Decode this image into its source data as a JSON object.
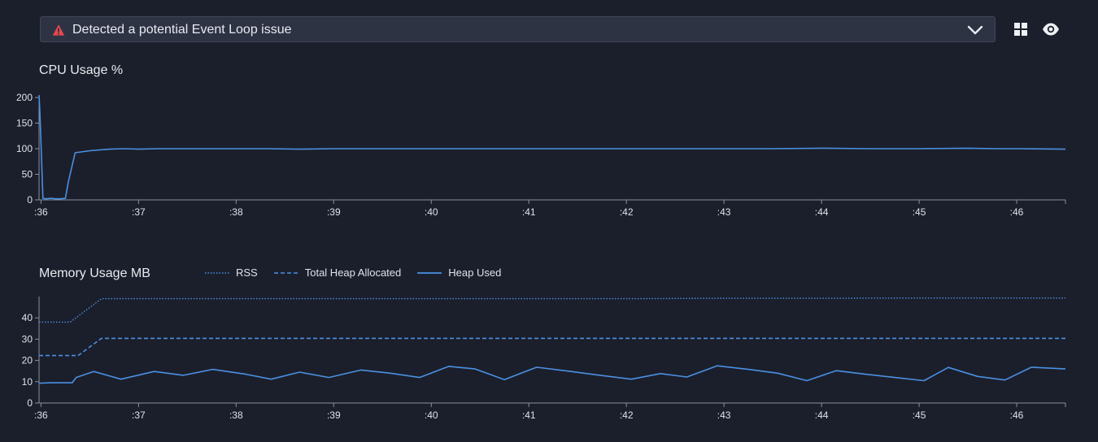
{
  "alert": {
    "text": "Detected a potential Event Loop issue",
    "icon": "warning-triangle-icon",
    "color": "#e5484d"
  },
  "toolbar": {
    "grid_icon": "grid-icon",
    "eye_icon": "eye-icon"
  },
  "cpu_chart": {
    "title": "CPU Usage %"
  },
  "memory_chart": {
    "title": "Memory Usage MB",
    "legend": [
      "RSS",
      "Total Heap Allocated",
      "Heap Used"
    ]
  },
  "colors": {
    "background": "#1b1f2b",
    "line": "#4a90e2",
    "axis": "#8a8f9c"
  },
  "chart_data": [
    {
      "type": "line",
      "title": "CPU Usage %",
      "x_tick_labels": [
        ":36",
        ":37",
        ":38",
        ":39",
        ":40",
        ":41",
        ":42",
        ":43",
        ":44",
        ":45",
        ":46"
      ],
      "x_ticks": [
        36,
        37,
        38,
        39,
        40,
        41,
        42,
        43,
        44,
        45,
        46
      ],
      "xlim": [
        35.98,
        46.5
      ],
      "ylim": [
        0,
        200
      ],
      "y_ticks": [
        0,
        50,
        100,
        150,
        200
      ],
      "series": [
        {
          "style": "solid",
          "x": [
            35.98,
            35.99,
            36.02,
            36.05,
            36.1,
            36.15,
            36.2,
            36.25,
            36.28,
            36.35,
            36.5,
            36.7,
            36.85,
            37.0,
            37.2,
            37.4,
            37.6,
            37.8,
            38.0,
            38.3,
            38.65,
            39.0,
            39.5,
            40.0,
            40.5,
            41.0,
            41.5,
            42.0,
            42.5,
            43.0,
            43.5,
            44.0,
            44.5,
            45.0,
            45.5,
            45.8,
            46.0,
            46.5
          ],
          "y": [
            205,
            165,
            3,
            2,
            3,
            2,
            2,
            3,
            35,
            92,
            96,
            99,
            100,
            99,
            100,
            100,
            100,
            100,
            100,
            100,
            99,
            100,
            100,
            100,
            100,
            100,
            100,
            100,
            100,
            100,
            100,
            101,
            100,
            100,
            101,
            100,
            100,
            99
          ]
        }
      ]
    },
    {
      "type": "line",
      "title": "Memory Usage MB",
      "x_tick_labels": [
        ":36",
        ":37",
        ":38",
        ":39",
        ":40",
        ":41",
        ":42",
        ":43",
        ":44",
        ":45",
        ":46"
      ],
      "x_ticks": [
        36,
        37,
        38,
        39,
        40,
        41,
        42,
        43,
        44,
        45,
        46
      ],
      "xlim": [
        35.98,
        46.5
      ],
      "ylim": [
        0,
        50
      ],
      "y_ticks": [
        0,
        10,
        20,
        30,
        40
      ],
      "series": [
        {
          "name": "RSS",
          "style": "dotted",
          "x": [
            35.98,
            36.3,
            36.62,
            37.0,
            38.0,
            39.0,
            40.0,
            41.0,
            42.0,
            43.0,
            44.0,
            45.0,
            46.0,
            46.5
          ],
          "y": [
            38,
            38,
            49,
            49,
            49,
            49,
            49,
            49,
            49,
            49.2,
            49.2,
            49.3,
            49.3,
            49.3
          ]
        },
        {
          "name": "Total Heap Allocated",
          "style": "dashed",
          "x": [
            35.98,
            36.38,
            36.62,
            37.0,
            38.0,
            39.0,
            40.0,
            41.0,
            42.0,
            43.0,
            44.0,
            45.0,
            46.0,
            46.5
          ],
          "y": [
            22.3,
            22.3,
            30.4,
            30.4,
            30.4,
            30.4,
            30.4,
            30.4,
            30.4,
            30.4,
            30.4,
            30.4,
            30.4,
            30.4
          ]
        },
        {
          "name": "Heap Used",
          "style": "solid",
          "x": [
            35.98,
            36.0,
            36.1,
            36.32,
            36.36,
            36.54,
            36.82,
            37.16,
            37.46,
            37.76,
            38.1,
            38.36,
            38.65,
            38.95,
            39.28,
            39.58,
            39.88,
            40.18,
            40.45,
            40.75,
            41.08,
            41.4,
            41.7,
            42.05,
            42.35,
            42.62,
            42.93,
            43.25,
            43.55,
            43.85,
            44.15,
            44.45,
            44.75,
            45.05,
            45.3,
            45.6,
            45.88,
            46.15,
            46.5
          ],
          "y": [
            9.5,
            9.3,
            9.5,
            9.5,
            12,
            14.8,
            11.2,
            14.8,
            13,
            15.8,
            13.5,
            11.2,
            14.5,
            12,
            15.5,
            14,
            12,
            17.2,
            16,
            11,
            16.8,
            15,
            13.2,
            11.2,
            13.8,
            12.2,
            17.5,
            15.8,
            14,
            10.5,
            15.2,
            13.5,
            12,
            10.5,
            16.7,
            12.5,
            10.8,
            16.8,
            16
          ]
        }
      ]
    }
  ]
}
